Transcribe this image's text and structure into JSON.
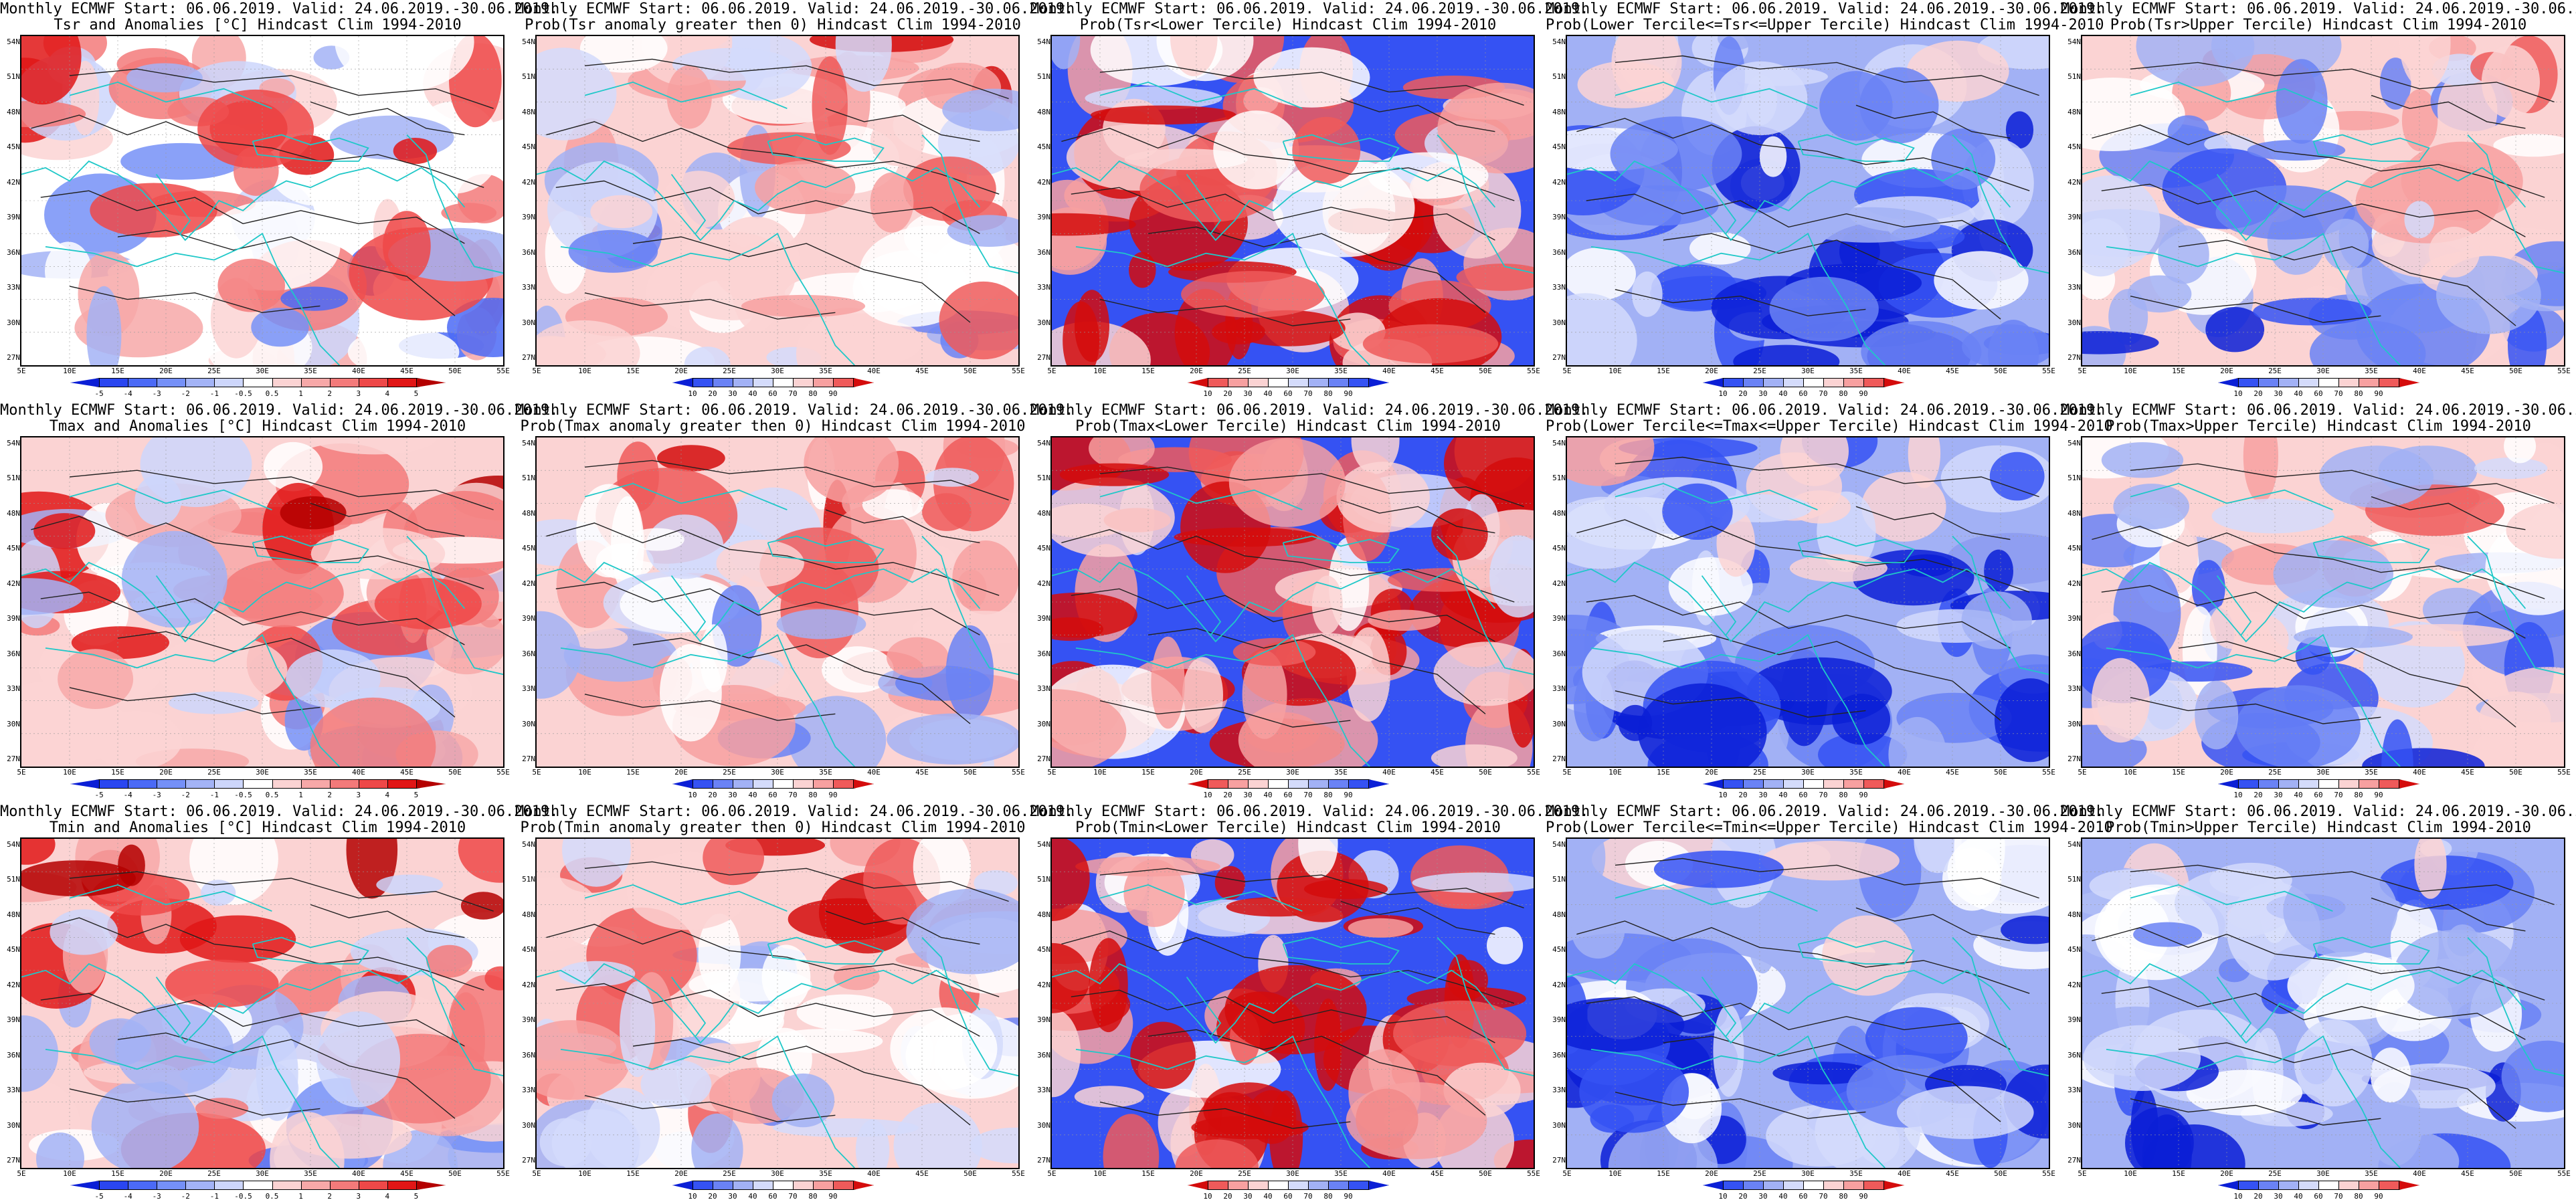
{
  "common": {
    "line1": "Monthly ECMWF Start: 06.06.2019. Valid: 24.06.2019.-30.06.2019.",
    "lat_labels": [
      "54N",
      "51N",
      "48N",
      "45N",
      "42N",
      "39N",
      "36N",
      "33N",
      "30N",
      "27N"
    ],
    "lon_labels": [
      "5E",
      "10E",
      "15E",
      "20E",
      "25E",
      "30E",
      "35E",
      "40E",
      "45E",
      "50E",
      "55E"
    ],
    "anomaly_ticks": [
      "-5",
      "-4",
      "-3",
      "-2",
      "-1",
      "-0.5",
      "0.5",
      "1",
      "2",
      "3",
      "4",
      "5"
    ],
    "prob_ticks": [
      "10",
      "20",
      "30",
      "40",
      "60",
      "70",
      "80",
      "90"
    ],
    "anomaly_colors": [
      "#0b1fd6",
      "#2a46f0",
      "#4b6af6",
      "#7590f7",
      "#a3b3f6",
      "#cdd6fb",
      "#ffffff",
      "#fbd3d3",
      "#f7a8a8",
      "#f37a7a",
      "#ee4848",
      "#e11616",
      "#b40000"
    ],
    "prob_colors": [
      "#0b1fd6",
      "#3552f3",
      "#6a82f5",
      "#a2b1f5",
      "#d4dbfb",
      "#ffffff",
      "#fbd3d3",
      "#f7a0a0",
      "#ef5a5a",
      "#d40c0c"
    ],
    "low_tercile_colors": [
      "#d40c0c",
      "#ef5a5a",
      "#f7a0a0",
      "#fbd3d3",
      "#ffffff",
      "#d4dbfb",
      "#a2b1f5",
      "#6a82f5",
      "#3552f3",
      "#0b1fd6"
    ]
  },
  "panels": [
    {
      "title2": "Tsr and Anomalies [°C] Hindcast Clim 1994-2010",
      "scale": "anomaly",
      "base": "#ffffff",
      "bias": 0.55
    },
    {
      "title2": "Prob(Tsr anomaly greater then 0) Hindcast Clim 1994-2010",
      "scale": "prob",
      "base": "#fbd3d3",
      "bias": 0.6
    },
    {
      "title2": "Prob(Tsr<Lower Tercile) Hindcast Clim 1994-2010",
      "scale": "low",
      "base": "#3552f3",
      "bias": 0.25
    },
    {
      "title2": "Prob(Lower Tercile<=Tsr<=Upper Tercile) Hindcast Clim 1994-2010",
      "scale": "prob",
      "base": "#a2b1f5",
      "bias": 0.3
    },
    {
      "title2": "Prob(Tsr>Upper Tercile) Hindcast Clim 1994-2010",
      "scale": "prob",
      "base": "#fbd3d3",
      "bias": 0.45
    },
    {
      "title2": "Tmax and Anomalies [°C] Hindcast Clim 1994-2010",
      "scale": "anomaly",
      "base": "#fbd3d3",
      "bias": 0.6
    },
    {
      "title2": "Prob(Tmax anomaly greater then 0) Hindcast Clim 1994-2010",
      "scale": "prob",
      "base": "#fbd3d3",
      "bias": 0.6
    },
    {
      "title2": "Prob(Tmax<Lower Tercile) Hindcast Clim 1994-2010",
      "scale": "low",
      "base": "#3552f3",
      "bias": 0.22
    },
    {
      "title2": "Prob(Lower Tercile<=Tmax<=Upper Tercile) Hindcast Clim 1994-2010",
      "scale": "prob",
      "base": "#a2b1f5",
      "bias": 0.3
    },
    {
      "title2": "Prob(Tmax>Upper Tercile) Hindcast Clim 1994-2010",
      "scale": "prob",
      "base": "#fbd3d3",
      "bias": 0.45
    },
    {
      "title2": "Tmin and Anomalies [°C] Hindcast Clim 1994-2010",
      "scale": "anomaly",
      "base": "#fbd3d3",
      "bias": 0.6
    },
    {
      "title2": "Prob(Tmin anomaly greater then 0) Hindcast Clim 1994-2010",
      "scale": "prob",
      "base": "#fbd3d3",
      "bias": 0.6
    },
    {
      "title2": "Prob(Tmin<Lower Tercile) Hindcast Clim 1994-2010",
      "scale": "low",
      "base": "#3552f3",
      "bias": 0.2
    },
    {
      "title2": "Prob(Lower Tercile<=Tmin<=Upper Tercile) Hindcast Clim 1994-2010",
      "scale": "prob",
      "base": "#a2b1f5",
      "bias": 0.32
    },
    {
      "title2": "Prob(Tmin>Upper Tercile) Hindcast Clim 1994-2010",
      "scale": "prob",
      "base": "#a2b1f5",
      "bias": 0.35
    }
  ]
}
